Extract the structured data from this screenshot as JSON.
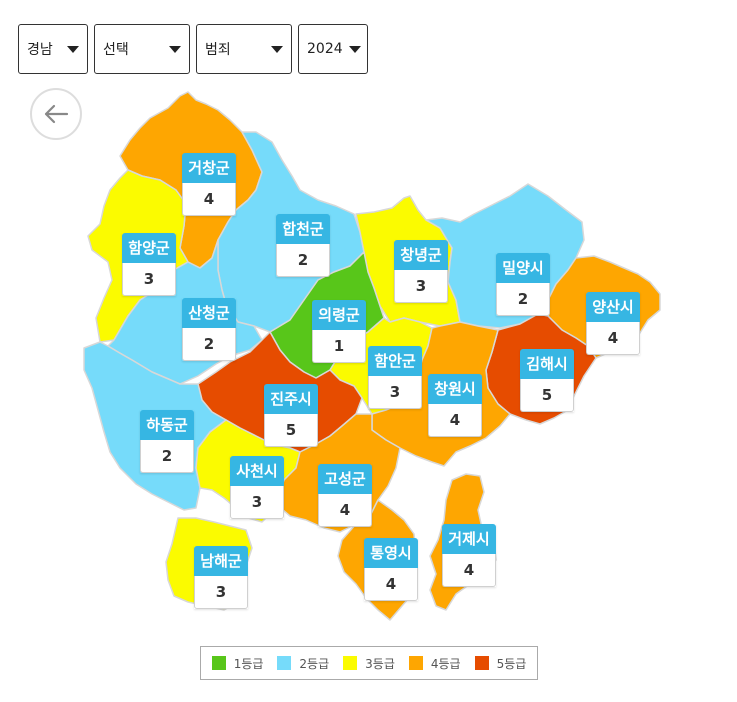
{
  "filters": {
    "region": "경남",
    "city": "선택",
    "category": "범죄",
    "year": "2024"
  },
  "grade_colors": {
    "1": "#58c61a",
    "2": "#76dbfa",
    "3": "#fbfb00",
    "4": "#fea601",
    "5": "#e64c00"
  },
  "legend": [
    {
      "grade": 1,
      "label": "1등급"
    },
    {
      "grade": 2,
      "label": "2등급"
    },
    {
      "grade": 3,
      "label": "3등급"
    },
    {
      "grade": 4,
      "label": "4등급"
    },
    {
      "grade": 5,
      "label": "5등급"
    }
  ],
  "regions": [
    {
      "key": "geochang",
      "name": "거창군",
      "grade": 4
    },
    {
      "key": "hapcheon",
      "name": "합천군",
      "grade": 2
    },
    {
      "key": "hamyang",
      "name": "함양군",
      "grade": 3
    },
    {
      "key": "changnyeong",
      "name": "창녕군",
      "grade": 3
    },
    {
      "key": "miryang",
      "name": "밀양시",
      "grade": 2
    },
    {
      "key": "sancheong",
      "name": "산청군",
      "grade": 2
    },
    {
      "key": "uiryeong",
      "name": "의령군",
      "grade": 1
    },
    {
      "key": "yangsan",
      "name": "양산시",
      "grade": 4
    },
    {
      "key": "haman",
      "name": "함안군",
      "grade": 3
    },
    {
      "key": "gimhae",
      "name": "김해시",
      "grade": 5
    },
    {
      "key": "jinju",
      "name": "진주시",
      "grade": 5
    },
    {
      "key": "changwon",
      "name": "창원시",
      "grade": 4
    },
    {
      "key": "hadong",
      "name": "하동군",
      "grade": 2
    },
    {
      "key": "sacheon",
      "name": "사천시",
      "grade": 3
    },
    {
      "key": "goseong",
      "name": "고성군",
      "grade": 4
    },
    {
      "key": "geoje",
      "name": "거제시",
      "grade": 4
    },
    {
      "key": "tongyeong",
      "name": "통영시",
      "grade": 4
    },
    {
      "key": "namhae",
      "name": "남해군",
      "grade": 3
    }
  ]
}
